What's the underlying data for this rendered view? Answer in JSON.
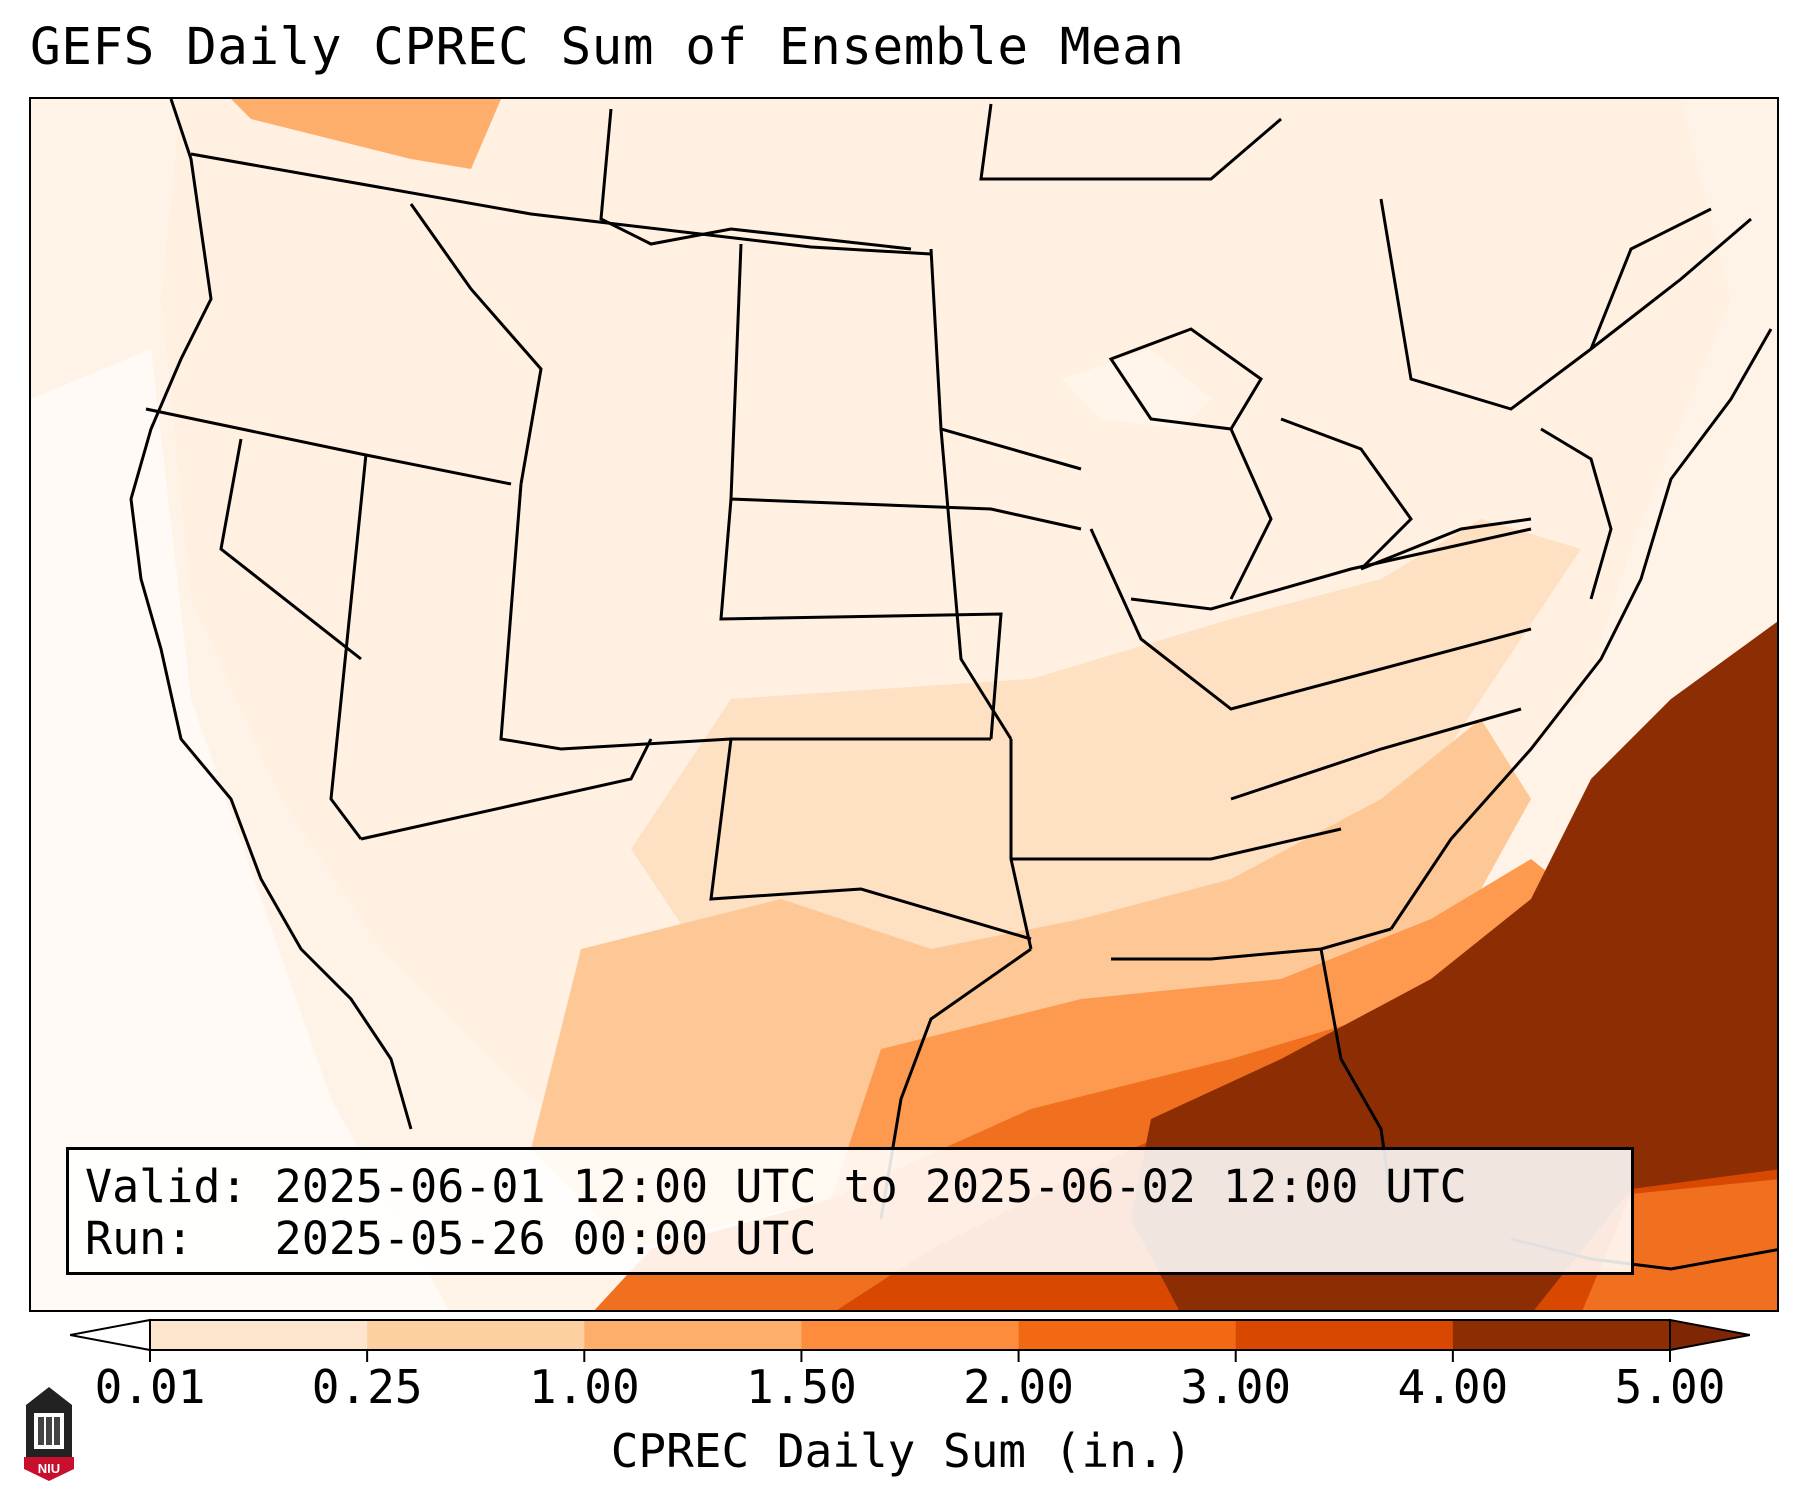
{
  "title": "GEFS Daily CPREC Sum of Ensemble Mean",
  "info": {
    "valid_line": "Valid: 2025-06-01 12:00 UTC to 2025-06-02 12:00 UTC",
    "run_line": "Run:   2025-05-26 00:00 UTC"
  },
  "colorbar": {
    "title": "CPREC Daily Sum (in.)",
    "ticks": [
      "0.01",
      "0.25",
      "1.00",
      "1.50",
      "2.00",
      "3.00",
      "4.00",
      "5.00"
    ],
    "colors": [
      "#fff5eb",
      "#fee6ce",
      "#fdd0a2",
      "#fdae6b",
      "#fd8d3c",
      "#f16913",
      "#d94801",
      "#8c2d04"
    ],
    "under_color": "#ffffff",
    "over_color": "#7f2704"
  },
  "logo": {
    "text": "NIU",
    "icon": "niu-logo-icon"
  },
  "map": {
    "projection": "lambert-conformal",
    "region": "CONUS",
    "ocean_max_color": "#8c2d04"
  }
}
